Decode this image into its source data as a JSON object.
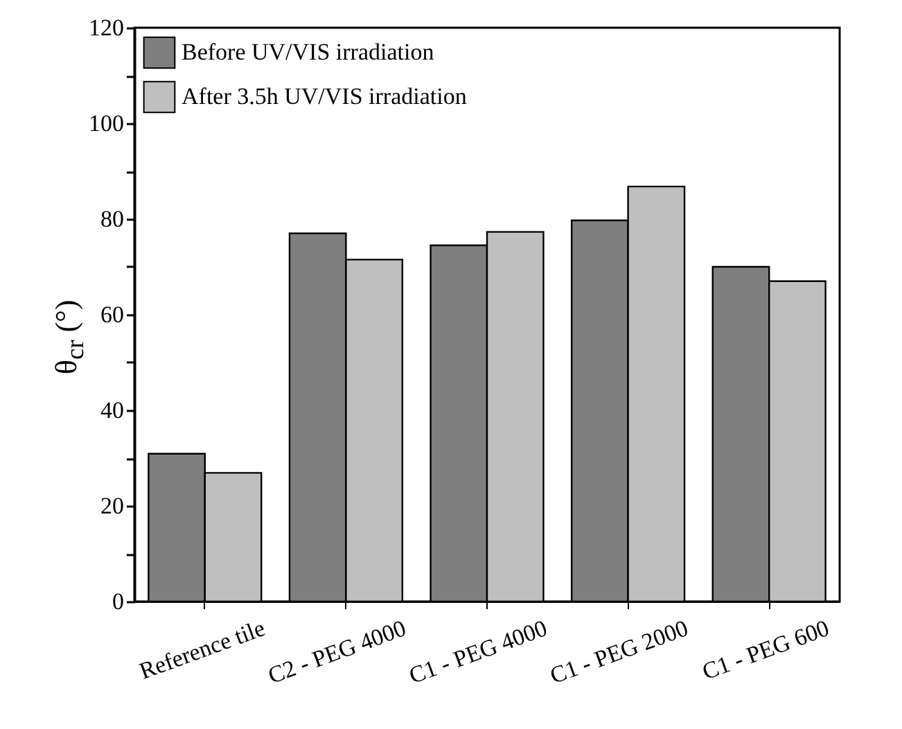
{
  "chart_data": {
    "type": "bar",
    "ylabel": "θ$_{cr}$ (°)",
    "categories": [
      "Reference tile",
      "C2 - PEG 4000",
      "C1 - PEG 4000",
      "C1 - PEG 2000",
      "C1 - PEG 600"
    ],
    "series": [
      {
        "name": "Before UV/VIS irradiation",
        "color": "#7f7f7f",
        "values": [
          30.9,
          77.0,
          74.5,
          79.7,
          70.0
        ]
      },
      {
        "name": "After 3.5h UV/VIS irradiation",
        "color": "#bfbfbf",
        "values": [
          26.9,
          71.5,
          77.3,
          86.8,
          67.0
        ]
      }
    ],
    "ylim": [
      0,
      120
    ],
    "yticks": [
      0,
      {
        "value": 10,
        "label": null
      },
      20,
      {
        "value": 30,
        "label": null
      },
      40,
      {
        "value": 50,
        "label": null
      },
      60,
      {
        "value": 70,
        "label": null
      },
      80,
      {
        "value": 90,
        "label": null
      },
      100,
      {
        "value": 110,
        "label": null
      },
      120
    ],
    "legend": "top left",
    "grid": false
  }
}
